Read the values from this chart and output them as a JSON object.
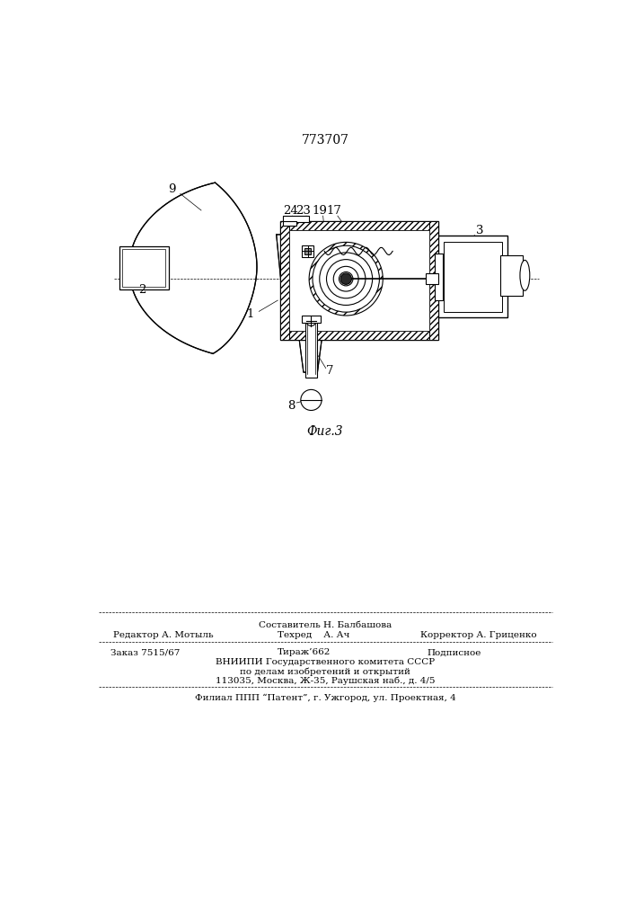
{
  "patent_number": "773707",
  "fig_caption": "Фиг.3",
  "background_color": "#ffffff",
  "line_color": "#000000",
  "footer": {
    "line1_center_top": "Составитель Н. Балбашова",
    "line1_left": "Редактор А. Мотыль",
    "line1_center": "Техред    А. Ач",
    "line1_right": "Корректор А. Гриценко",
    "line2_left": "Заказ 7515/67",
    "line2_center": "Тираж’662",
    "line2_right": "Подписное",
    "line3": "ВНИИПИ Государственного комитета СССР",
    "line4": "по делам изобретений и открытий",
    "line5": "113035, Москва, Ж-35, Раушская наб., д. 4/5",
    "line6": "Филиал ППП “Патент”, г. Ужгород, ул. Проектная, 4"
  }
}
